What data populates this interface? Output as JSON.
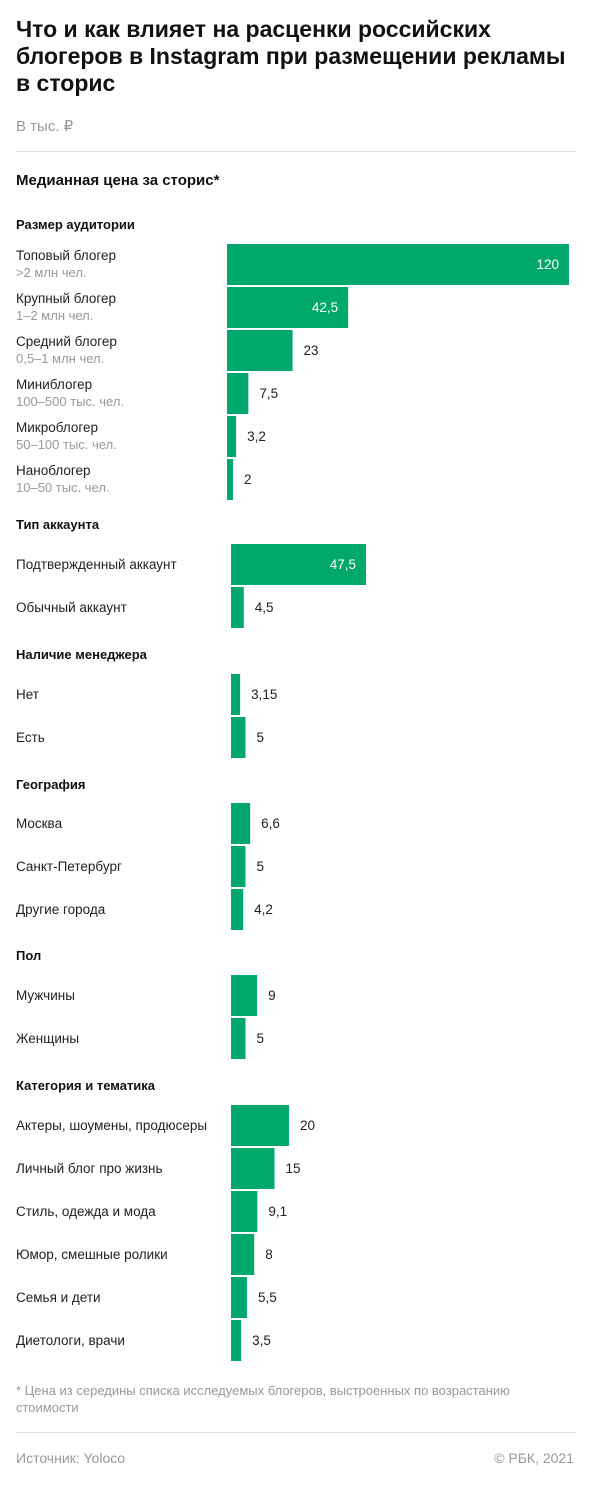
{
  "title": "Что и как влияет на расценки российских блогеров в Instagram при размещении рекламы в сторис",
  "unit_label": "В тыс. ₽",
  "chart_subtitle": "Медианная цена за сторис*",
  "footnote": "* Цена из середины списка исследуемых блогеров, выстроенных по возрастанию стоимости",
  "source": "Источник:  Yoloco",
  "copyright": "©  РБК, 2021",
  "colors": {
    "bar": "#00a86b",
    "text": "#1a1a1a",
    "muted": "#999999"
  },
  "chart_data": {
    "type": "bar",
    "orientation": "horizontal",
    "groups": [
      {
        "title": "Размер аудитории",
        "categories": [
          "Топовый блогер",
          "Крупный блогер",
          "Средний блогер",
          "Миниблогер",
          "Микроблогер",
          "Наноблогер"
        ],
        "sublabels": [
          ">2 млн чел.",
          "1–2 млн чел.",
          "0,5–1 млн чел.",
          "100–500 тыс. чел.",
          "50–100 тыс. чел.",
          "10–50 тыс. чел."
        ],
        "values": [
          120,
          42.5,
          23,
          7.5,
          3.2,
          2
        ],
        "value_labels": [
          "120",
          "42,5",
          "23",
          "7,5",
          "3,2",
          "2"
        ]
      },
      {
        "title": "Тип аккаунта",
        "categories": [
          "Подтвержденный аккаунт",
          "Обычный аккаунт"
        ],
        "values": [
          47.5,
          4.5
        ],
        "value_labels": [
          "47,5",
          "4,5"
        ]
      },
      {
        "title": "Наличие менеджера",
        "categories": [
          "Нет",
          "Есть"
        ],
        "values": [
          3.15,
          5
        ],
        "value_labels": [
          "3,15",
          "5"
        ]
      },
      {
        "title": "География",
        "categories": [
          "Москва",
          "Санкт-Петербург",
          "Другие города"
        ],
        "values": [
          6.6,
          5,
          4.2
        ],
        "value_labels": [
          "6,6",
          "5",
          "4,2"
        ]
      },
      {
        "title": "Пол",
        "categories": [
          "Мужчины",
          "Женщины"
        ],
        "values": [
          9,
          5
        ],
        "value_labels": [
          "9",
          "5"
        ]
      },
      {
        "title": "Категория и тематика",
        "categories": [
          "Актеры, шоумены, продюсеры",
          "Личный блог про жизнь",
          "Стиль, одежда и мода",
          "Юмор, смешные ролики",
          "Семья и дети",
          "Диетологи, врачи"
        ],
        "values": [
          20,
          15,
          9.1,
          8,
          5.5,
          3.5
        ],
        "value_labels": [
          "20",
          "15",
          "9,1",
          "8",
          "5,5",
          "3,5"
        ]
      }
    ]
  }
}
